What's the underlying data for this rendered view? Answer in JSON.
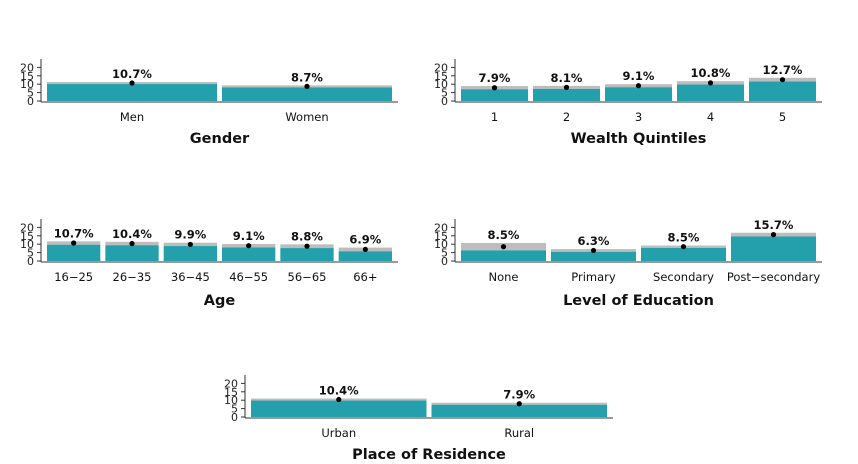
{
  "colors": {
    "bar": "#24a0ad",
    "interval": "#bdbdbd",
    "point": "#000000",
    "axis": "#333333"
  },
  "chart_data": [
    {
      "type": "bar",
      "title": "Gender",
      "categories": [
        "Men",
        "Women"
      ],
      "values": [
        10.7,
        8.7
      ],
      "labels": [
        "10.7%",
        "8.7%"
      ],
      "ci_low": [
        10.1,
        8.1
      ],
      "ci_high": [
        11.3,
        9.3
      ],
      "yticks": [
        0,
        5,
        10,
        15,
        20
      ],
      "ylim": [
        0,
        25
      ]
    },
    {
      "type": "bar",
      "title": "Wealth Quintiles",
      "categories": [
        "1",
        "2",
        "3",
        "4",
        "5"
      ],
      "values": [
        7.9,
        8.1,
        9.1,
        10.8,
        12.7
      ],
      "labels": [
        "7.9%",
        "8.1%",
        "9.1%",
        "10.8%",
        "12.7%"
      ],
      "ci_low": [
        7.0,
        7.2,
        8.2,
        9.8,
        11.6
      ],
      "ci_high": [
        8.9,
        9.0,
        10.0,
        11.8,
        13.8
      ],
      "yticks": [
        0,
        5,
        10,
        15,
        20
      ],
      "ylim": [
        0,
        25
      ]
    },
    {
      "type": "bar",
      "title": "Age",
      "categories": [
        "16−25",
        "26−35",
        "36−45",
        "46−55",
        "56−65",
        "66+"
      ],
      "values": [
        10.7,
        10.4,
        9.9,
        9.1,
        8.8,
        6.9
      ],
      "labels": [
        "10.7%",
        "10.4%",
        "9.9%",
        "9.1%",
        "8.8%",
        "6.9%"
      ],
      "ci_low": [
        9.7,
        9.4,
        8.9,
        8.1,
        7.7,
        5.8
      ],
      "ci_high": [
        11.7,
        11.4,
        10.9,
        10.1,
        9.9,
        8.0
      ],
      "yticks": [
        0,
        5,
        10,
        15,
        20
      ],
      "ylim": [
        0,
        25
      ]
    },
    {
      "type": "bar",
      "title": "Level of Education",
      "categories": [
        "None",
        "Primary",
        "Secondary",
        "Post−secondary"
      ],
      "values": [
        8.5,
        6.3,
        8.5,
        15.7
      ],
      "labels": [
        "8.5%",
        "6.3%",
        "8.5%",
        "15.7%"
      ],
      "ci_low": [
        6.3,
        5.5,
        7.8,
        14.6
      ],
      "ci_high": [
        10.7,
        7.1,
        9.2,
        16.8
      ],
      "yticks": [
        0,
        5,
        10,
        15,
        20
      ],
      "ylim": [
        0,
        25
      ]
    },
    {
      "type": "bar",
      "title": "Place of Residence",
      "categories": [
        "Urban",
        "Rural"
      ],
      "values": [
        10.4,
        7.9
      ],
      "labels": [
        "10.4%",
        "7.9%"
      ],
      "ci_low": [
        9.8,
        7.3
      ],
      "ci_high": [
        11.0,
        8.5
      ],
      "yticks": [
        0,
        5,
        10,
        15,
        20
      ],
      "ylim": [
        0,
        25
      ]
    }
  ]
}
